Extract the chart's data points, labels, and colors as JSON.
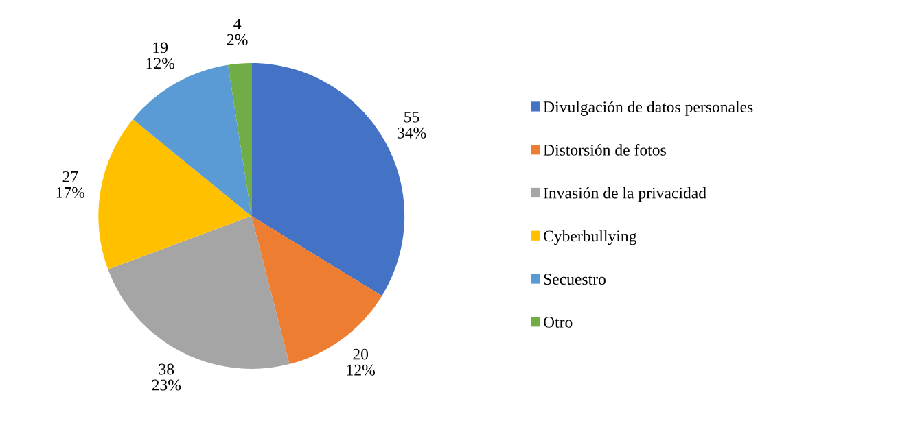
{
  "chart_data": {
    "type": "pie",
    "categories": [
      "Divulgación de datos personales",
      "Distorsión de fotos",
      "Invasión de la privacidad",
      "Cyberbullying",
      "Secuestro",
      "Otro"
    ],
    "values": [
      55,
      20,
      38,
      27,
      19,
      4
    ],
    "colors": [
      "#4472c4",
      "#ed7d31",
      "#a5a5a5",
      "#ffc000",
      "#5b9bd5",
      "#70ad47"
    ],
    "value_labels": [
      "55\n34%",
      "20\n12%",
      "38\n23%",
      "27\n17%",
      "19\n12%",
      "4\n2%"
    ],
    "legend": "right"
  }
}
